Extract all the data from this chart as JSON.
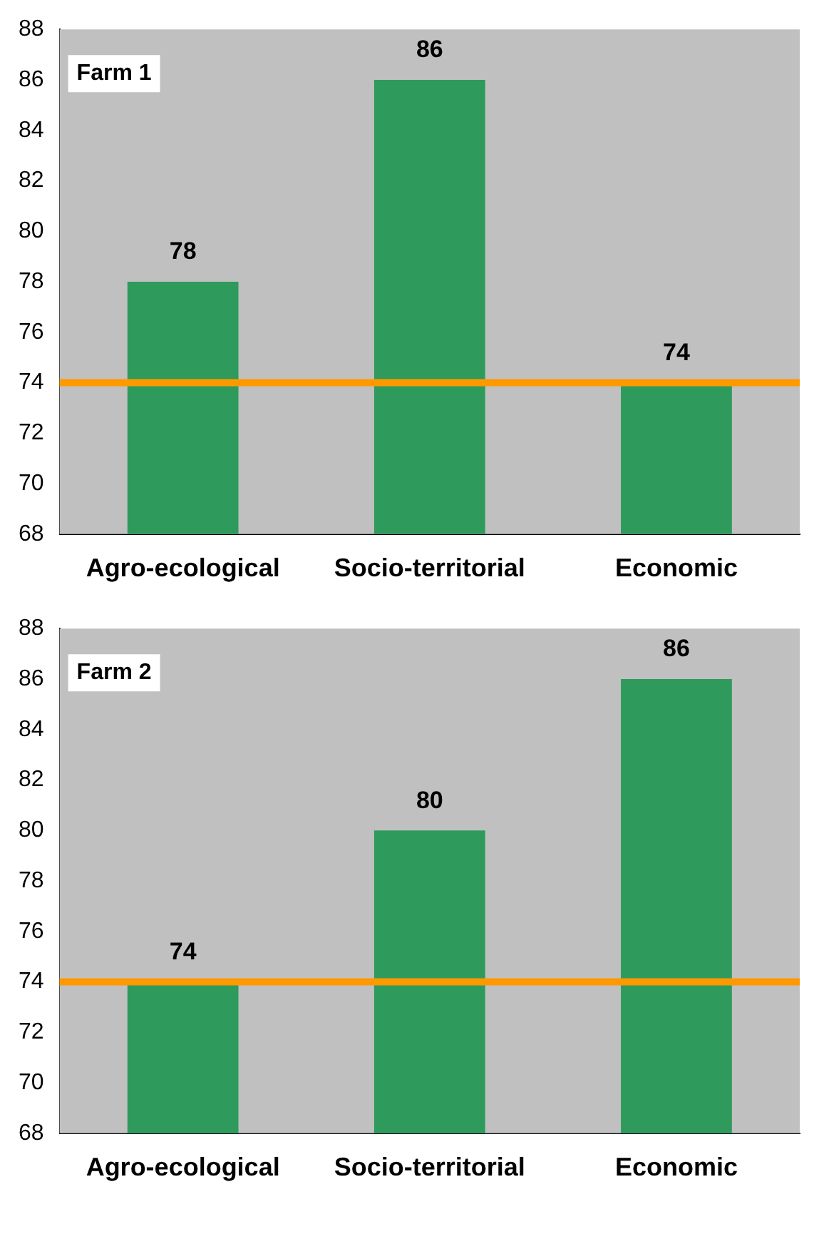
{
  "chart_data": [
    {
      "type": "bar",
      "categories": [
        "Agro-ecological",
        "Socio-territorial",
        "Economic"
      ],
      "values": [
        78,
        86,
        74
      ],
      "color": "#2e9a5c",
      "ylim": [
        68,
        88
      ],
      "yticks": [
        68,
        70,
        72,
        74,
        76,
        78,
        80,
        82,
        84,
        86,
        88
      ],
      "grid": false,
      "legend": false,
      "data_labels": true,
      "annotations": [
        "Farm 1"
      ],
      "ref_lines": [
        {
          "axis": "y",
          "value": 74,
          "color": "#ff9900"
        }
      ]
    },
    {
      "type": "bar",
      "categories": [
        "Agro-ecological",
        "Socio-territorial",
        "Economic"
      ],
      "values": [
        74,
        80,
        86
      ],
      "color": "#2e9a5c",
      "ylim": [
        68,
        88
      ],
      "yticks": [
        68,
        70,
        72,
        74,
        76,
        78,
        80,
        82,
        84,
        86,
        88
      ],
      "grid": false,
      "legend": false,
      "data_labels": true,
      "annotations": [
        "Farm 2"
      ],
      "ref_lines": [
        {
          "axis": "y",
          "value": 74,
          "color": "#ff9900"
        }
      ]
    }
  ]
}
